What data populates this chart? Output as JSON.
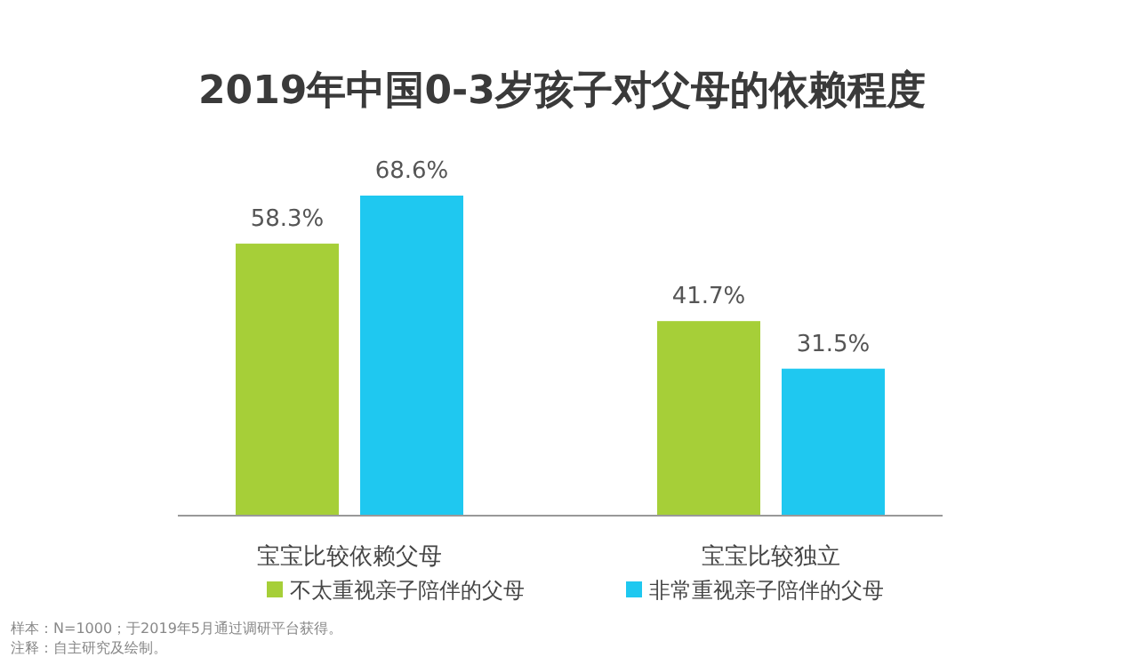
{
  "chart_data": {
    "type": "bar",
    "title": "2019年中国0-3岁孩子对父母的依赖程度",
    "categories": [
      "宝宝比较依赖父母",
      "宝宝比较独立"
    ],
    "series": [
      {
        "name": "不太重视亲子陪伴的父母",
        "color": "#a6cf38",
        "values": [
          58.3,
          41.7
        ],
        "value_labels": [
          "58.3%",
          "41.7%"
        ]
      },
      {
        "name": "非常重视亲子陪伴的父母",
        "color": "#1fc8f0",
        "values": [
          68.6,
          31.5
        ],
        "value_labels": [
          "68.6%",
          "31.5%"
        ]
      }
    ],
    "legend": "bottom",
    "annotations": [
      "样本：N=1000；于2019年5月通过调研平台获得。",
      "注释：自主研究及绘制。"
    ]
  }
}
